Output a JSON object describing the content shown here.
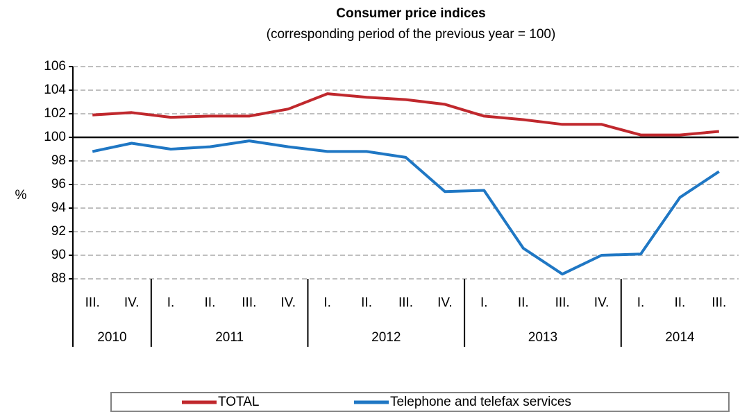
{
  "chart_data": {
    "type": "line",
    "title": "Consumer price indices",
    "subtitle": "(corresponding period of the previous year = 100)",
    "y_label": "%",
    "groups": [
      {
        "name": "2010",
        "categories": [
          "III.",
          "IV."
        ]
      },
      {
        "name": "2011",
        "categories": [
          "I.",
          "II.",
          "III.",
          "IV."
        ]
      },
      {
        "name": "2012",
        "categories": [
          "I.",
          "II.",
          "III.",
          "IV."
        ]
      },
      {
        "name": "2013",
        "categories": [
          "I.",
          "II.",
          "III.",
          "IV."
        ]
      },
      {
        "name": "2014",
        "categories": [
          "I.",
          "II.",
          "III."
        ]
      }
    ],
    "series": [
      {
        "name": "TOTAL",
        "color": "#c0282d",
        "values": [
          101.9,
          102.1,
          101.7,
          101.8,
          101.8,
          102.4,
          103.7,
          103.4,
          103.2,
          102.8,
          101.8,
          101.5,
          101.1,
          101.1,
          100.2,
          100.2,
          100.5
        ]
      },
      {
        "name": "Telephone and telefax services",
        "color": "#1f77c4",
        "values": [
          98.8,
          99.5,
          99.0,
          99.2,
          99.7,
          99.2,
          98.8,
          98.8,
          98.3,
          95.4,
          95.5,
          90.6,
          88.4,
          90.0,
          90.1,
          94.9,
          97.1
        ]
      }
    ],
    "ylim": [
      88,
      106
    ],
    "yticks": [
      88,
      90,
      92,
      94,
      96,
      98,
      100,
      102,
      104,
      106
    ],
    "reference_line": 100,
    "grid": true,
    "legend": "bottom"
  }
}
